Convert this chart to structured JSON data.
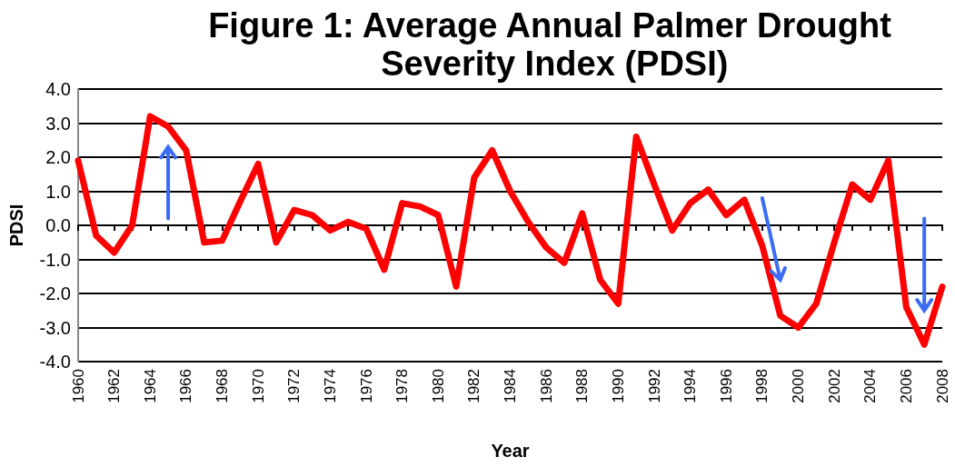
{
  "chart_data": {
    "type": "line",
    "title": "Figure 1: Average Annual Palmer Drought Severity Index (PDSI)",
    "xlabel": "Year",
    "ylabel": "PDSI",
    "categories": [
      "1960",
      null,
      "1962",
      null,
      "1964",
      null,
      "1966",
      null,
      "1968",
      null,
      "1970",
      null,
      "1972",
      null,
      "1974",
      null,
      "1976",
      null,
      "1978",
      null,
      "1980",
      null,
      "1982",
      null,
      "1984",
      null,
      "1986",
      null,
      "1988",
      null,
      "1990",
      null,
      "1992",
      null,
      "1994",
      null,
      "1996",
      null,
      "1998",
      null,
      "2000",
      null,
      "2002",
      null,
      "2004",
      null,
      "2006",
      null,
      "2008"
    ],
    "series": [
      {
        "color": "#ff0000",
        "values": [
          1.9,
          -0.3,
          -0.8,
          0.0,
          3.2,
          2.9,
          2.2,
          -0.5,
          -0.45,
          0.7,
          1.8,
          -0.5,
          0.45,
          0.3,
          -0.15,
          0.1,
          -0.1,
          -1.3,
          0.65,
          0.55,
          0.3,
          -1.8,
          1.4,
          2.2,
          1.0,
          0.1,
          -0.65,
          -1.1,
          0.35,
          -1.6,
          -2.3,
          2.6,
          1.2,
          -0.15,
          0.65,
          1.05,
          0.3,
          0.75,
          -0.6,
          -2.65,
          -3.0,
          -2.3,
          -0.5,
          1.2,
          0.75,
          1.9,
          -2.4,
          -3.5,
          -1.8
        ]
      }
    ],
    "ylim": [
      -4,
      4
    ],
    "yticks": [
      {
        "value": -4,
        "label": "-4.0"
      },
      {
        "value": -3,
        "label": "-3.0"
      },
      {
        "value": -2,
        "label": "-2.0"
      },
      {
        "value": -1,
        "label": "-1.0"
      },
      {
        "value": 0,
        "label": "0.0"
      },
      {
        "value": 1,
        "label": "1.0"
      },
      {
        "value": 2,
        "label": "2.0"
      },
      {
        "value": 3,
        "label": "3.0"
      },
      {
        "value": 4,
        "label": "4.0"
      }
    ],
    "grid": "y",
    "marker": "none",
    "line_style": "solid"
  }
}
